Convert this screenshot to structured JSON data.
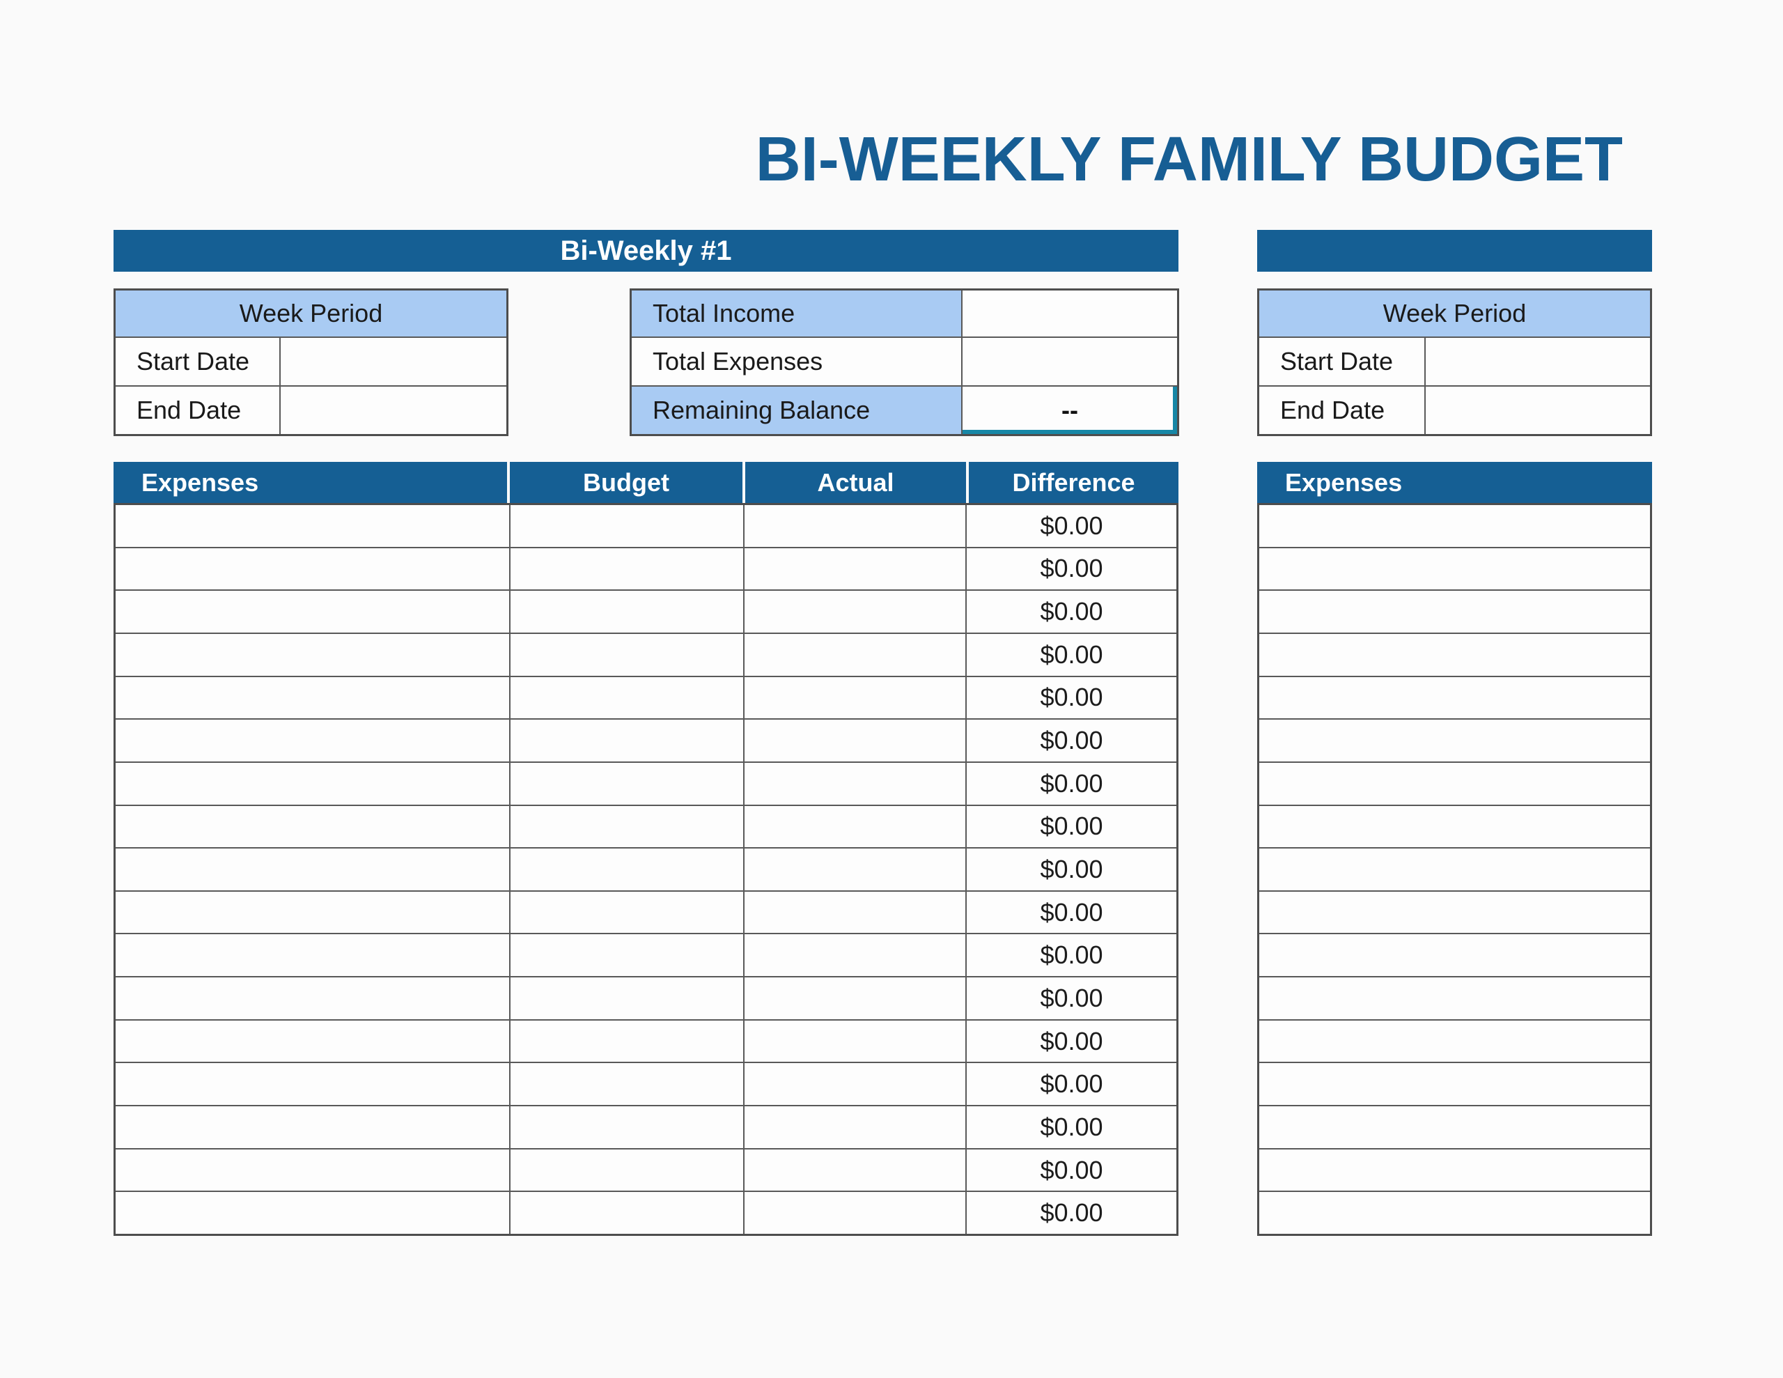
{
  "page": {
    "title": "BI-WEEKLY FAMILY BUDGET"
  },
  "colors": {
    "primary_blue": "#155f94",
    "light_blue": "#a9cbf3",
    "grid_border": "#595959",
    "selection_teal": "#1787a6",
    "background": "#fafafa"
  },
  "sections": {
    "biweekly1": {
      "header_label": "Bi-Weekly #1",
      "week_period": {
        "title": "Week Period",
        "rows": [
          {
            "label": "Start Date",
            "value": ""
          },
          {
            "label": "End Date",
            "value": ""
          }
        ]
      },
      "summary": {
        "rows": [
          {
            "label": "Total Income",
            "value": ""
          },
          {
            "label": "Total Expenses",
            "value": ""
          },
          {
            "label": "Remaining Balance",
            "value": "--"
          }
        ]
      },
      "expenses": {
        "columns": [
          "Expenses",
          "Budget",
          "Actual",
          "Difference"
        ],
        "rows": [
          {
            "expenses": "",
            "budget": "",
            "actual": "",
            "difference": "$0.00"
          },
          {
            "expenses": "",
            "budget": "",
            "actual": "",
            "difference": "$0.00"
          },
          {
            "expenses": "",
            "budget": "",
            "actual": "",
            "difference": "$0.00"
          },
          {
            "expenses": "",
            "budget": "",
            "actual": "",
            "difference": "$0.00"
          },
          {
            "expenses": "",
            "budget": "",
            "actual": "",
            "difference": "$0.00"
          },
          {
            "expenses": "",
            "budget": "",
            "actual": "",
            "difference": "$0.00"
          },
          {
            "expenses": "",
            "budget": "",
            "actual": "",
            "difference": "$0.00"
          },
          {
            "expenses": "",
            "budget": "",
            "actual": "",
            "difference": "$0.00"
          },
          {
            "expenses": "",
            "budget": "",
            "actual": "",
            "difference": "$0.00"
          },
          {
            "expenses": "",
            "budget": "",
            "actual": "",
            "difference": "$0.00"
          },
          {
            "expenses": "",
            "budget": "",
            "actual": "",
            "difference": "$0.00"
          },
          {
            "expenses": "",
            "budget": "",
            "actual": "",
            "difference": "$0.00"
          },
          {
            "expenses": "",
            "budget": "",
            "actual": "",
            "difference": "$0.00"
          },
          {
            "expenses": "",
            "budget": "",
            "actual": "",
            "difference": "$0.00"
          },
          {
            "expenses": "",
            "budget": "",
            "actual": "",
            "difference": "$0.00"
          },
          {
            "expenses": "",
            "budget": "",
            "actual": "",
            "difference": "$0.00"
          },
          {
            "expenses": "",
            "budget": "",
            "actual": "",
            "difference": "$0.00"
          }
        ]
      }
    },
    "biweekly2": {
      "header_label": "",
      "week_period": {
        "title": "Week Period",
        "rows": [
          {
            "label": "Start Date",
            "value": ""
          },
          {
            "label": "End Date",
            "value": ""
          }
        ]
      },
      "expenses": {
        "columns": [
          "Expenses"
        ],
        "rows": [
          {
            "expenses": ""
          },
          {
            "expenses": ""
          },
          {
            "expenses": ""
          },
          {
            "expenses": ""
          },
          {
            "expenses": ""
          },
          {
            "expenses": ""
          },
          {
            "expenses": ""
          },
          {
            "expenses": ""
          },
          {
            "expenses": ""
          },
          {
            "expenses": ""
          },
          {
            "expenses": ""
          },
          {
            "expenses": ""
          },
          {
            "expenses": ""
          },
          {
            "expenses": ""
          },
          {
            "expenses": ""
          },
          {
            "expenses": ""
          },
          {
            "expenses": ""
          }
        ]
      }
    }
  }
}
